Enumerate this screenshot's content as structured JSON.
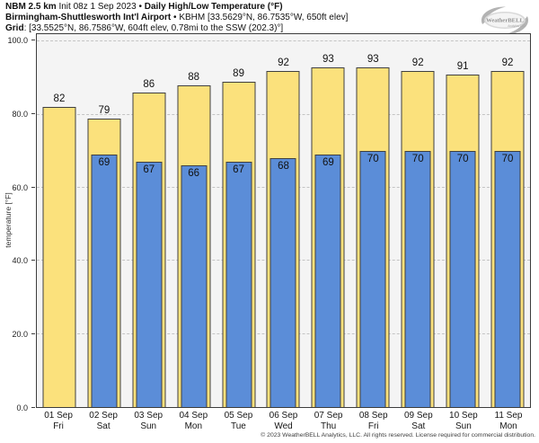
{
  "header": {
    "line1_bold1": "NBM 2.5 km",
    "line1_regular": "Init 08z 1 Sep 2023",
    "line1_sep": "•",
    "line1_bold2": "Daily High/Low Temperature (°F)",
    "line2_bold": "Birmingham-Shuttlesworth Int'l Airport",
    "line2_sep": "•",
    "line2_regular": "KBHM [33.5629°N, 86.7535°W, 650ft elev]",
    "line3_bold": "Grid",
    "line3_regular": ": [33.5525°N, 86.7586°W, 604ft elev, 0.78mi to the SSW (202.3)°]"
  },
  "logo": {
    "name": "WeatherBELL",
    "sub": "Analytics LLC"
  },
  "chart_data": {
    "type": "bar",
    "title": "Daily High/Low Temperature (°F)",
    "ylabel": "temperature [°F]",
    "ylim": [
      0,
      102
    ],
    "grid": "horizontal-dashed",
    "categories": [
      {
        "date": "01 Sep",
        "day": "Fri"
      },
      {
        "date": "02 Sep",
        "day": "Sat"
      },
      {
        "date": "03 Sep",
        "day": "Sun"
      },
      {
        "date": "04 Sep",
        "day": "Mon"
      },
      {
        "date": "05 Sep",
        "day": "Tue"
      },
      {
        "date": "06 Sep",
        "day": "Wed"
      },
      {
        "date": "07 Sep",
        "day": "Thu"
      },
      {
        "date": "08 Sep",
        "day": "Fri"
      },
      {
        "date": "09 Sep",
        "day": "Sat"
      },
      {
        "date": "10 Sep",
        "day": "Sun"
      },
      {
        "date": "11 Sep",
        "day": "Mon"
      }
    ],
    "series": [
      {
        "name": "daily-high",
        "color": "#fbe17c",
        "values": [
          82,
          79,
          86,
          88,
          89,
          92,
          93,
          93,
          92,
          91,
          92
        ]
      },
      {
        "name": "daily-low",
        "color": "#5b8dd8",
        "values": [
          null,
          69,
          67,
          66,
          67,
          68,
          69,
          70,
          70,
          70,
          70
        ]
      }
    ],
    "ytick_values": [
      0,
      20,
      40,
      60,
      80,
      100
    ],
    "ytick_labels": [
      "0.0",
      "20.0",
      "40.0",
      "60.0",
      "80.0",
      "100.0"
    ],
    "gridline_values": [
      20,
      40,
      60,
      80,
      100
    ]
  },
  "colors": {
    "bar_high": "#fbe17c",
    "bar_low": "#5b8dd8",
    "bar_border": "#3f3f3f",
    "plot_bg": "#f4f4f4",
    "gridline": "#c4c4c4",
    "logo_gray": "#a9a9a9"
  },
  "footer": {
    "copyright": "© 2023 WeatherBELL Analytics, LLC. All rights reserved. License required for commercial distribution."
  }
}
